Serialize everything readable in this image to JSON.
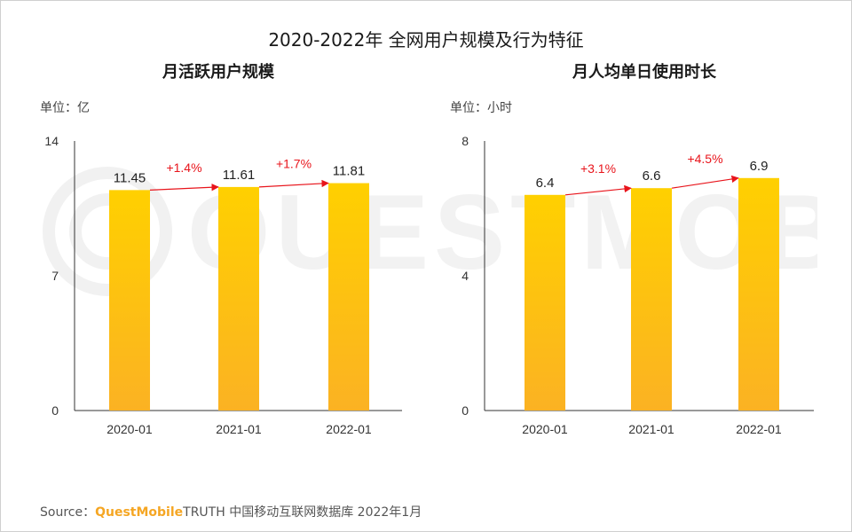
{
  "title": "2020-2022年 全网用户规模及行为特征",
  "watermark": "QUESTMOBILE",
  "source": {
    "prefix": "Source：",
    "brand": "QuestMobile",
    "text": "TRUTH 中国移动互联网数据库 2022年1月"
  },
  "colors": {
    "bar_top": "#ffd000",
    "bar_bottom": "#fbb223",
    "growth": "#e8141b",
    "axis": "#333333"
  },
  "chart_data": [
    {
      "type": "bar",
      "title": "月活跃用户规模",
      "unit_label": "单位：亿",
      "categories": [
        "2020-01",
        "2021-01",
        "2022-01"
      ],
      "values": [
        11.45,
        11.61,
        11.81
      ],
      "value_labels": [
        "11.45",
        "11.61",
        "11.81"
      ],
      "growth_labels": [
        "+1.4%",
        "+1.7%"
      ],
      "yticks": [
        {
          "value": 0,
          "label": "0"
        },
        {
          "value": 7,
          "label": "7"
        },
        {
          "value": 14,
          "label": "14"
        }
      ],
      "ylim": [
        0,
        14
      ],
      "grid": false
    },
    {
      "type": "bar",
      "title": "月人均单日使用时长",
      "unit_label": "单位：小时",
      "categories": [
        "2020-01",
        "2021-01",
        "2022-01"
      ],
      "values": [
        6.4,
        6.6,
        6.9
      ],
      "value_labels": [
        "6.4",
        "6.6",
        "6.9"
      ],
      "growth_labels": [
        "+3.1%",
        "+4.5%"
      ],
      "yticks": [
        {
          "value": 0,
          "label": "0"
        },
        {
          "value": 4,
          "label": "4"
        },
        {
          "value": 8,
          "label": "8"
        }
      ],
      "ylim": [
        0,
        8
      ],
      "grid": false
    }
  ]
}
